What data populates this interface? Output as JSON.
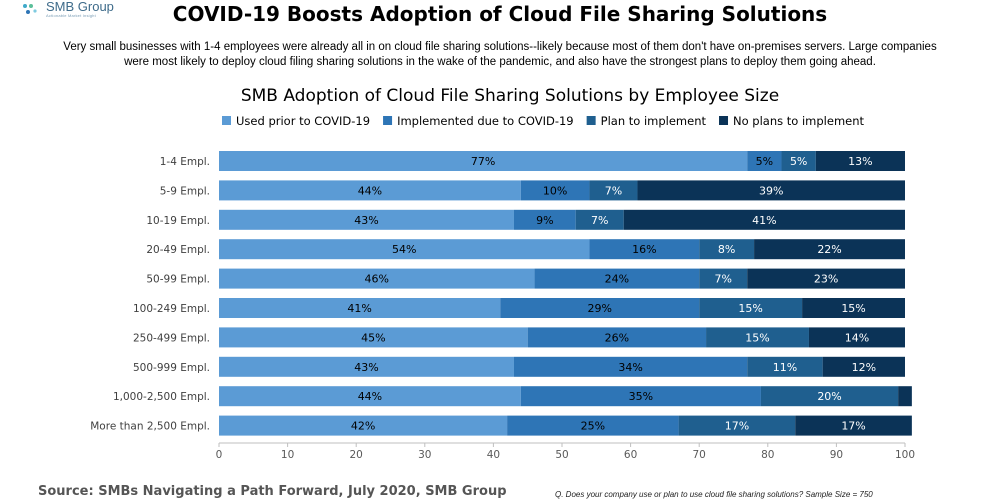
{
  "header": {
    "logo_name": "SMB Group",
    "logo_tagline": "Actionable Market Insight",
    "title": "COVID-19 Boosts Adoption of Cloud File Sharing Solutions",
    "intro": "Very small businesses with 1-4 employees were already all in on cloud file sharing solutions--likely because most of them don't have on-premises servers.  Large companies were most likely to deploy cloud filing sharing solutions in the wake of the pandemic, and also have the strongest plans to deploy them going ahead."
  },
  "chart_data": {
    "type": "bar",
    "orientation": "horizontal",
    "stacked": true,
    "title": "SMB Adoption of Cloud File Sharing Solutions by Employee Size",
    "xlabel": "",
    "ylabel": "",
    "xlim": [
      0,
      100
    ],
    "xticks": [
      0,
      10,
      20,
      30,
      40,
      50,
      60,
      70,
      80,
      90,
      100
    ],
    "grid": false,
    "legend_position": "top",
    "value_suffix": "%",
    "categories": [
      "1-4 Empl.",
      "5-9 Empl.",
      "10-19 Empl.",
      "20-49 Empl.",
      "50-99 Empl.",
      "100-249 Empl.",
      "250-499 Empl.",
      "500-999 Empl.",
      "1,000-2,500 Empl.",
      "More than 2,500 Empl."
    ],
    "series": [
      {
        "name": "Used prior to COVID-19",
        "color": "#5b9bd5",
        "label_color": "#000000",
        "values": [
          77,
          44,
          43,
          54,
          46,
          41,
          45,
          43,
          44,
          42
        ]
      },
      {
        "name": "Implemented due to COVID-19",
        "color": "#2e75b6",
        "label_color": "#000000",
        "values": [
          5,
          10,
          9,
          16,
          24,
          29,
          26,
          34,
          35,
          25
        ]
      },
      {
        "name": "Plan to implement",
        "color": "#1f5f8f",
        "label_color": "#ffffff",
        "values": [
          5,
          7,
          7,
          8,
          7,
          15,
          15,
          11,
          20,
          17
        ]
      },
      {
        "name": "No plans to implement",
        "color": "#0b3357",
        "label_color": "#ffffff",
        "values": [
          13,
          39,
          41,
          22,
          23,
          15,
          14,
          12,
          2,
          17
        ]
      }
    ],
    "hidden_labels": [
      [
        8,
        3
      ]
    ]
  },
  "footer": {
    "source": "Source: SMBs Navigating a Path Forward, July 2020, SMB Group",
    "note": "Q. Does your company use or plan to use cloud file sharing solutions? Sample Size = 750"
  }
}
